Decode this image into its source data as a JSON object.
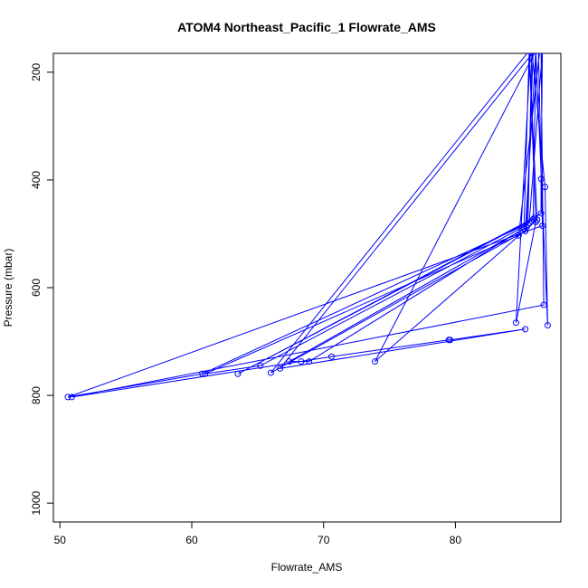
{
  "chart_data": {
    "type": "line",
    "title": "ATOM4 Northeast_Pacific_1 Flowrate_AMS",
    "xlabel": "Flowrate_AMS",
    "ylabel": "Pressure (mbar)",
    "xlim": [
      49.5,
      88
    ],
    "ylim": [
      1035,
      165
    ],
    "y_reversed": true,
    "x_ticks": [
      50,
      60,
      70,
      80
    ],
    "y_ticks": [
      200,
      400,
      600,
      800,
      1000
    ],
    "grid": false,
    "legend": "none",
    "color": "#0000ff",
    "marker": "open-circle",
    "series": [
      {
        "values": [
          {
            "x": 86.3,
            "y": 160
          },
          {
            "x": 86.6,
            "y": 485
          },
          {
            "x": 50.6,
            "y": 803
          },
          {
            "x": 60.8,
            "y": 760
          },
          {
            "x": 85.6,
            "y": 480
          },
          {
            "x": 86.6,
            "y": 160
          },
          {
            "x": 86.5,
            "y": 398
          },
          {
            "x": 86.5,
            "y": 462
          },
          {
            "x": 86.0,
            "y": 470
          },
          {
            "x": 63.5,
            "y": 760
          },
          {
            "x": 85.9,
            "y": 473
          },
          {
            "x": 86.1,
            "y": 160
          },
          {
            "x": 86.4,
            "y": 160
          },
          {
            "x": 84.8,
            "y": 503
          },
          {
            "x": 61.0,
            "y": 760
          },
          {
            "x": 65.2,
            "y": 745
          },
          {
            "x": 85.5,
            "y": 483
          },
          {
            "x": 85.8,
            "y": 160
          },
          {
            "x": 86.8,
            "y": 413
          },
          {
            "x": 87.0,
            "y": 670
          },
          {
            "x": 86.1,
            "y": 160
          },
          {
            "x": 85.3,
            "y": 495
          },
          {
            "x": 66.0,
            "y": 758
          },
          {
            "x": 85.6,
            "y": 160
          },
          {
            "x": 86.1,
            "y": 478
          },
          {
            "x": 84.6,
            "y": 665
          },
          {
            "x": 85.7,
            "y": 160
          },
          {
            "x": 86.5,
            "y": 160
          },
          {
            "x": 86.7,
            "y": 632
          },
          {
            "x": 50.9,
            "y": 803
          },
          {
            "x": 70.6,
            "y": 728
          },
          {
            "x": 79.5,
            "y": 697
          },
          {
            "x": 79.6,
            "y": 697
          },
          {
            "x": 85.3,
            "y": 677
          },
          {
            "x": 66.7,
            "y": 750
          },
          {
            "x": 86.0,
            "y": 160
          },
          {
            "x": 85.9,
            "y": 160
          },
          {
            "x": 85.4,
            "y": 488
          },
          {
            "x": 67.4,
            "y": 737
          },
          {
            "x": 68.3,
            "y": 737
          },
          {
            "x": 68.9,
            "y": 737
          },
          {
            "x": 85.2,
            "y": 490
          },
          {
            "x": 85.6,
            "y": 160
          },
          {
            "x": 86.2,
            "y": 474
          },
          {
            "x": 73.9,
            "y": 737
          },
          {
            "x": 86.1,
            "y": 160
          }
        ]
      }
    ]
  }
}
